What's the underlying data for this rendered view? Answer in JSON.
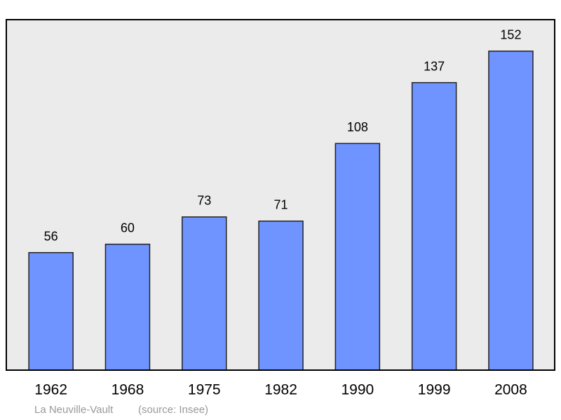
{
  "chart_data": {
    "type": "bar",
    "title": "La Neuville-Vault",
    "source": "(source: Insee)",
    "categories": [
      "1962",
      "1968",
      "1975",
      "1982",
      "1990",
      "1999",
      "2008"
    ],
    "values": [
      56,
      60,
      73,
      71,
      108,
      137,
      152
    ],
    "color": "#7094ff",
    "ylim": [
      0,
      167
    ]
  }
}
